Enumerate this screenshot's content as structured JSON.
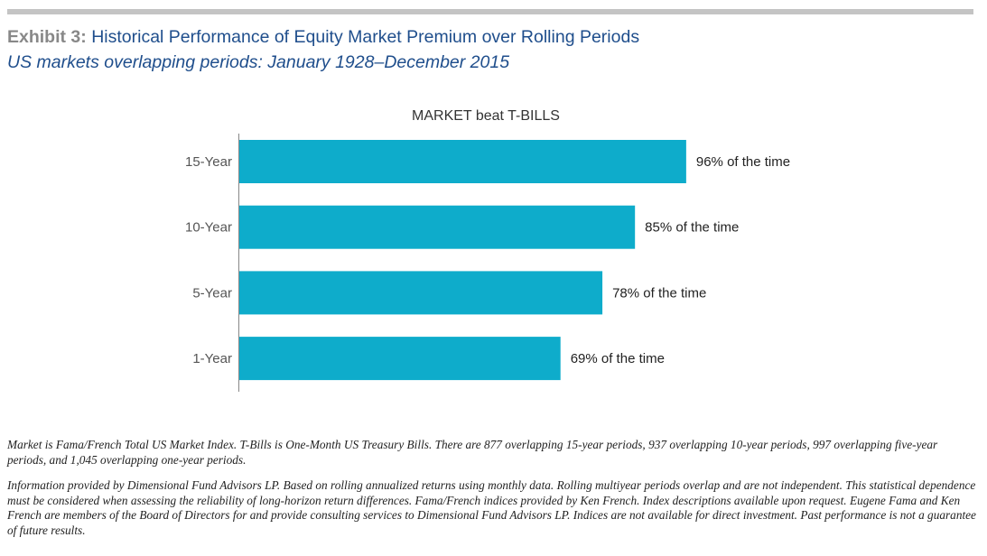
{
  "header": {
    "exhibit_label": "Exhibit 3:",
    "title": "Historical Performance of Equity Market Premium over Rolling Periods",
    "subtitle": "US markets overlapping periods: January 1928–December 2015"
  },
  "colors": {
    "bar": "#0eaccb",
    "title": "#1f4e8c",
    "rule": "#c4c4c4"
  },
  "chart_data": {
    "type": "bar",
    "orientation": "horizontal",
    "title": "MARKET beat T-BILLS",
    "categories": [
      "15-Year",
      "10-Year",
      "5-Year",
      "1-Year"
    ],
    "values": [
      96,
      85,
      78,
      69
    ],
    "data_labels": [
      "96% of the time",
      "85% of the time",
      "78% of the time",
      "69% of the time"
    ],
    "unit": "%",
    "xlim": [
      0,
      100
    ],
    "grid": false,
    "legend": "none"
  },
  "footnotes": {
    "note1": "Market is Fama/French Total US Market Index. T-Bills is One-Month US Treasury Bills. There are 877 overlapping 15-year periods, 937 overlapping 10-year periods, 997 overlapping five-year periods, and 1,045 overlapping one-year periods.",
    "note2": "Information provided by Dimensional Fund Advisors LP. Based on rolling annualized returns using monthly data. Rolling multiyear periods overlap and are not independent. This statistical dependence must be considered when assessing the reliability of long-horizon return differences. Fama/French indices provided by Ken French. Index descriptions available upon request. Eugene Fama and Ken French are members of the Board of Directors for and provide consulting services to Dimensional Fund Advisors LP. Indices are not available for direct investment. Past performance is not a guarantee of future results."
  }
}
